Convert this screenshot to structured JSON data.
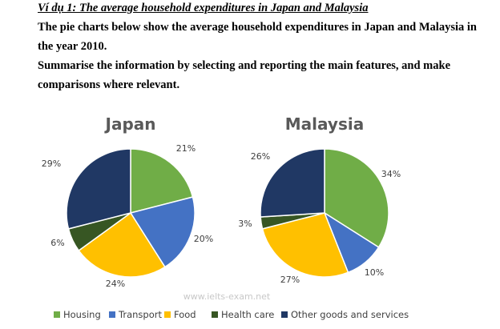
{
  "heading": "Ví dụ 1: The average household expenditures in Japan and Malaysia",
  "prompt_1": "The pie charts below show the average household expenditures in Japan and Malaysia in the year 2010.",
  "prompt_2": "Summarise the information by selecting and reporting the main features, and make comparisons where relevant.",
  "watermark": "www.ielts-exam.net",
  "colors": {
    "Housing": "#70ad47",
    "Transport": "#4472c4",
    "Food": "#ffc000",
    "Health care": "#375623",
    "Other goods and services": "#203864"
  },
  "chart_data": [
    {
      "type": "pie",
      "title": "Japan",
      "labels": [
        "Housing",
        "Transport",
        "Food",
        "Health care",
        "Other goods and services"
      ],
      "values": [
        21,
        20,
        24,
        6,
        29
      ],
      "value_labels": [
        "21%",
        "20%",
        "24%",
        "6%",
        "29%"
      ]
    },
    {
      "type": "pie",
      "title": "Malaysia",
      "labels": [
        "Housing",
        "Transport",
        "Food",
        "Health care",
        "Other goods and services"
      ],
      "values": [
        34,
        10,
        27,
        3,
        26
      ],
      "value_labels": [
        "34%",
        "10%",
        "27%",
        "3%",
        "26%"
      ]
    }
  ],
  "legend": {
    "position": "bottom",
    "items": [
      "Housing",
      "Transport",
      "Food",
      "Health care",
      "Other goods and services"
    ]
  }
}
